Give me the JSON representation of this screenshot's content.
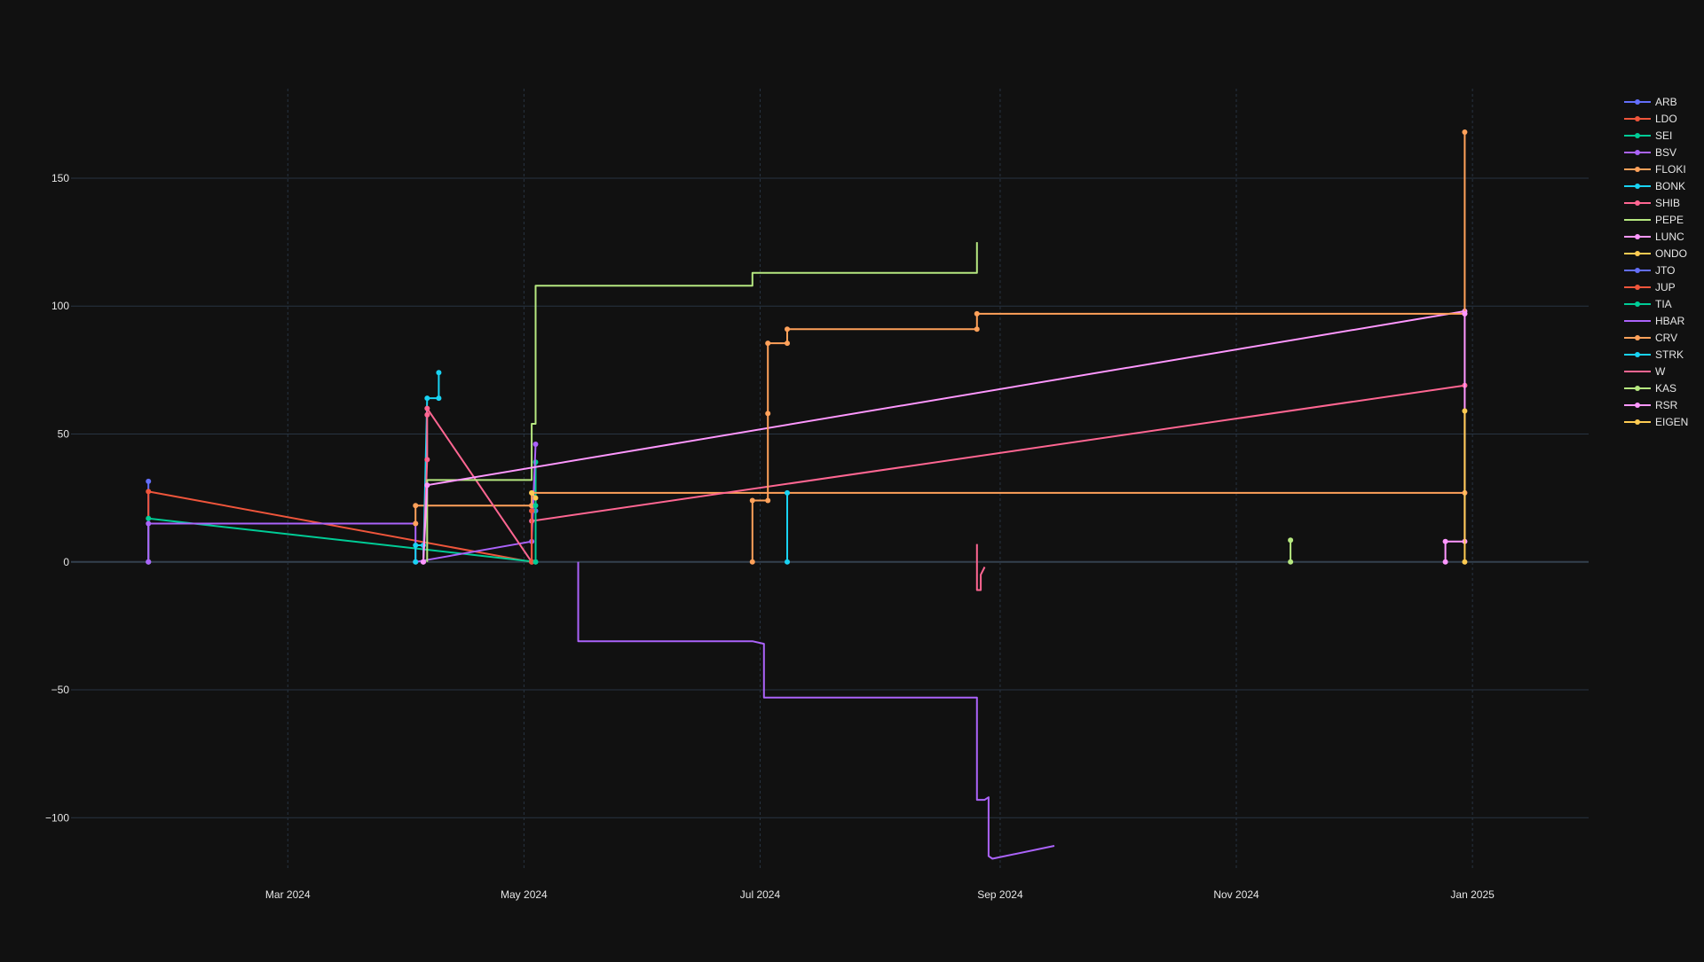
{
  "chart_data": {
    "type": "line",
    "title": "",
    "xlabel": "",
    "ylabel": "",
    "x_type": "date",
    "xlim": [
      "2024-01-05",
      "2025-01-31"
    ],
    "ylim": [
      -120,
      185
    ],
    "x_ticks": [
      {
        "date": "2024-03-01",
        "label": "Mar 2024"
      },
      {
        "date": "2024-05-01",
        "label": "May 2024"
      },
      {
        "date": "2024-07-01",
        "label": "Jul 2024"
      },
      {
        "date": "2024-09-01",
        "label": "Sep 2024"
      },
      {
        "date": "2024-11-01",
        "label": "Nov 2024"
      },
      {
        "date": "2025-01-01",
        "label": "Jan 2025"
      }
    ],
    "y_ticks": [
      {
        "value": 150,
        "label": "150"
      },
      {
        "value": 100,
        "label": "100"
      },
      {
        "value": 50,
        "label": "50"
      },
      {
        "value": 0,
        "label": "0"
      },
      {
        "value": -50,
        "label": "−50"
      },
      {
        "value": -100,
        "label": "−100"
      }
    ],
    "grid": true,
    "legend_position": "top-right",
    "series": [
      {
        "name": "ARB",
        "color": "#636efa",
        "markers": true,
        "points": [
          [
            "2024-01-25",
            0
          ],
          [
            "2024-01-25",
            31.5
          ]
        ]
      },
      {
        "name": "LDO",
        "color": "#ef553b",
        "markers": true,
        "points": [
          [
            "2024-01-25",
            0
          ],
          [
            "2024-01-25",
            27.5
          ],
          [
            "2024-05-03",
            0
          ],
          [
            "2024-05-03",
            22
          ]
        ]
      },
      {
        "name": "SEI",
        "color": "#00cc96",
        "markers": true,
        "points": [
          [
            "2024-01-25",
            0
          ],
          [
            "2024-01-25",
            17
          ],
          [
            "2024-05-04",
            0
          ],
          [
            "2024-05-04",
            39
          ]
        ]
      },
      {
        "name": "BSV",
        "color": "#ab63fa",
        "markers": true,
        "points": [
          [
            "2024-01-25",
            0
          ],
          [
            "2024-01-25",
            15
          ],
          [
            "2024-04-03",
            15
          ],
          [
            "2024-04-03",
            0
          ],
          [
            "2024-05-03",
            8
          ],
          [
            "2024-05-04",
            46
          ]
        ]
      },
      {
        "name": "FLOKI",
        "color": "#ffa15a",
        "markers": true,
        "points": [
          [
            "2024-04-03",
            15
          ],
          [
            "2024-04-03",
            22
          ],
          [
            "2024-05-03",
            22
          ],
          [
            "2024-05-03",
            27
          ],
          [
            "2024-12-30",
            27
          ]
        ]
      },
      {
        "name": "BONK",
        "color": "#19d3f3",
        "markers": true,
        "points": [
          [
            "2024-04-03",
            0
          ],
          [
            "2024-04-03",
            6.5
          ],
          [
            "2024-04-05",
            6.5
          ],
          [
            "2024-04-05",
            0
          ],
          [
            "2024-04-06",
            64
          ],
          [
            "2024-04-09",
            64
          ],
          [
            "2024-04-09",
            74
          ]
        ]
      },
      {
        "name": "SHIB",
        "color": "#ff6692",
        "markers": true,
        "points": [
          [
            "2024-04-05",
            0
          ],
          [
            "2024-04-06",
            40
          ],
          [
            "2024-04-06",
            57.5
          ],
          [
            "2024-04-06",
            60
          ],
          [
            "2024-05-03",
            0
          ],
          [
            "2024-05-03",
            16
          ],
          [
            "2024-12-30",
            69
          ]
        ]
      },
      {
        "name": "PEPE",
        "color": "#b6e880",
        "markers": false,
        "points": [
          [
            "2024-04-06",
            0
          ],
          [
            "2024-04-06",
            32
          ],
          [
            "2024-05-03",
            32
          ],
          [
            "2024-05-03",
            54
          ],
          [
            "2024-05-04",
            54
          ],
          [
            "2024-05-04",
            108
          ],
          [
            "2024-06-29",
            108
          ],
          [
            "2024-06-29",
            113
          ],
          [
            "2024-08-26",
            113
          ],
          [
            "2024-08-26",
            125
          ]
        ]
      },
      {
        "name": "LUNC",
        "color": "#ff97ff",
        "markers": true,
        "points": [
          [
            "2024-04-05",
            0
          ],
          [
            "2024-04-06",
            30
          ],
          [
            "2024-12-30",
            98
          ]
        ]
      },
      {
        "name": "ONDO",
        "color": "#fecb52",
        "markers": true,
        "points": [
          [
            "2024-05-03",
            27
          ],
          [
            "2024-05-04",
            25
          ]
        ]
      },
      {
        "name": "JTO",
        "color": "#636efa",
        "markers": true,
        "points": [
          [
            "2024-05-03",
            20
          ],
          [
            "2024-05-04",
            20
          ]
        ]
      },
      {
        "name": "JUP",
        "color": "#ef553b",
        "markers": true,
        "points": [
          [
            "2024-05-03",
            0
          ],
          [
            "2024-05-03",
            20
          ]
        ]
      },
      {
        "name": "TIA",
        "color": "#00cc96",
        "markers": true,
        "points": [
          [
            "2024-05-04",
            0
          ],
          [
            "2024-05-04",
            22
          ]
        ]
      },
      {
        "name": "HBAR",
        "color": "#ab63fa",
        "markers": false,
        "points": [
          [
            "2024-05-15",
            0
          ],
          [
            "2024-05-15",
            -4
          ],
          [
            "2024-05-15",
            -31
          ],
          [
            "2024-06-29",
            -31
          ],
          [
            "2024-07-02",
            -32
          ],
          [
            "2024-07-02",
            -53
          ],
          [
            "2024-08-26",
            -53
          ],
          [
            "2024-08-26",
            -93
          ],
          [
            "2024-08-28",
            -93
          ],
          [
            "2024-08-29",
            -92
          ],
          [
            "2024-08-29",
            -115
          ],
          [
            "2024-08-30",
            -116
          ],
          [
            "2024-09-15",
            -111
          ]
        ]
      },
      {
        "name": "CRV",
        "color": "#ffa15a",
        "markers": true,
        "points": [
          [
            "2024-06-29",
            0
          ],
          [
            "2024-06-29",
            24
          ],
          [
            "2024-07-03",
            24
          ],
          [
            "2024-07-03",
            58
          ],
          [
            "2024-07-03",
            85.5
          ],
          [
            "2024-07-08",
            85.5
          ],
          [
            "2024-07-08",
            91
          ],
          [
            "2024-08-26",
            91
          ],
          [
            "2024-08-26",
            97
          ],
          [
            "2024-12-30",
            97
          ],
          [
            "2024-12-30",
            168
          ]
        ]
      },
      {
        "name": "STRK",
        "color": "#19d3f3",
        "markers": true,
        "points": [
          [
            "2024-07-08",
            0
          ],
          [
            "2024-07-08",
            27
          ]
        ]
      },
      {
        "name": "W",
        "color": "#ff6692",
        "markers": false,
        "points": [
          [
            "2024-08-26",
            7
          ],
          [
            "2024-08-26",
            -11
          ],
          [
            "2024-08-27",
            -11
          ],
          [
            "2024-08-27",
            -5
          ],
          [
            "2024-08-28",
            -2
          ]
        ]
      },
      {
        "name": "KAS",
        "color": "#b6e880",
        "markers": true,
        "points": [
          [
            "2024-11-15",
            0
          ],
          [
            "2024-11-15",
            8.5
          ]
        ]
      },
      {
        "name": "RSR",
        "color": "#ff97ff",
        "markers": true,
        "points": [
          [
            "2024-12-25",
            0
          ],
          [
            "2024-12-25",
            8
          ],
          [
            "2024-12-30",
            8
          ],
          [
            "2024-12-30",
            97
          ]
        ]
      },
      {
        "name": "EIGEN",
        "color": "#fecb52",
        "markers": true,
        "points": [
          [
            "2024-12-30",
            0
          ],
          [
            "2024-12-30",
            59
          ]
        ]
      }
    ]
  }
}
